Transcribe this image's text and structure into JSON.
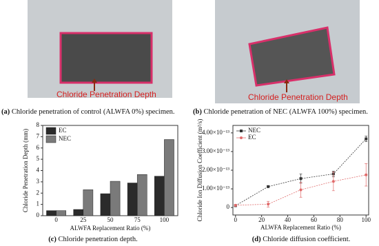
{
  "panels": [
    {
      "annotation": "Chloride Penetration Depth",
      "label": "(a)",
      "caption": "Chloride penetration of control (ALWFA 0%) specimen."
    },
    {
      "annotation": "Chloride Penetration Depth",
      "label": "(b)",
      "caption": "Chloride penetration of NEC (ALWFA 100%) specimen."
    }
  ],
  "chart_data": [
    {
      "type": "bar",
      "label": "(c)",
      "caption": "Chloride penetration depth.",
      "x_label": "ALWFA Replacement Ratio (%)",
      "y_label": "Chloride Penetration Depth (mm)",
      "categories": [
        "0",
        "25",
        "50",
        "75",
        "100"
      ],
      "series": [
        {
          "name": "EC",
          "color": "#2b2b2b",
          "values": [
            0.45,
            0.55,
            1.95,
            2.9,
            3.5
          ]
        },
        {
          "name": "NEC",
          "color": "#7a7a7a",
          "values": [
            0.45,
            2.3,
            3.05,
            3.65,
            6.75
          ]
        }
      ],
      "ylim": [
        0,
        8
      ],
      "yticks": [
        0,
        1,
        2,
        3,
        4,
        5,
        6,
        7,
        8
      ],
      "legend": "upper-left"
    },
    {
      "type": "line",
      "label": "(d)",
      "caption": "Chloride diffusion coefficient.",
      "x_label": "ALWFA Replacement Ratio (%)",
      "y_label": "Chloride Ion Diffusion Coefficient (m²/s)",
      "x": [
        0,
        25,
        50,
        75,
        100
      ],
      "series": [
        {
          "name": "NEC",
          "color": "#333333",
          "marker": "square",
          "values": [
            1e-14,
            1.12e-13,
            1.55e-13,
            1.8e-13,
            3.68e-13
          ],
          "errors": [
            5e-15,
            5e-15,
            2.5e-14,
            1.5e-14,
            1.5e-14
          ]
        },
        {
          "name": "EC",
          "color": "#e06a6a",
          "marker": "circle",
          "values": [
            1.2e-14,
            1.8e-14,
            9.5e-14,
            1.4e-13,
            1.75e-13
          ],
          "errors": [
            5e-15,
            1.5e-14,
            4e-14,
            5e-14,
            6e-14
          ]
        }
      ],
      "xlim": [
        -2,
        102
      ],
      "xticks": [
        0,
        20,
        40,
        60,
        80,
        100
      ],
      "ylim": [
        -4e-14,
        4.4e-13
      ],
      "yticks": [
        0,
        {
          "value": 1e-13,
          "label": "1.00×10⁻¹³"
        },
        {
          "value": 2e-13,
          "label": "2.00×10⁻¹³"
        },
        {
          "value": 3e-13,
          "label": "3.00×10⁻¹³"
        },
        {
          "value": 4e-13,
          "label": "4.00×10⁻¹³"
        }
      ],
      "legend": "upper-left"
    }
  ]
}
